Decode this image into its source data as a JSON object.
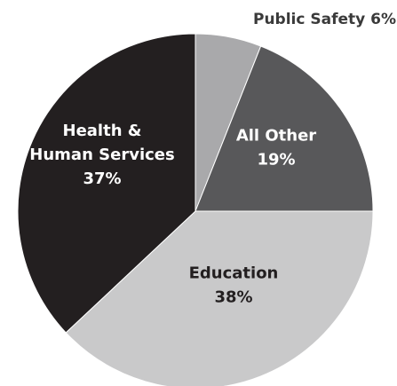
{
  "chart_data": {
    "type": "pie",
    "title": "",
    "start_angle_deg": 0,
    "direction": "clockwise",
    "slices": [
      {
        "name": "Public Safety",
        "label_lines": [
          "Public Safety 6%"
        ],
        "value": 6,
        "color": "#a9a9ab",
        "label_color": "#3a3a3a",
        "label_placement": "outside"
      },
      {
        "name": "All Other",
        "label_lines": [
          "All Other",
          "19%"
        ],
        "value": 19,
        "color": "#58585a",
        "label_color": "#ffffff",
        "label_placement": "inside"
      },
      {
        "name": "Education",
        "label_lines": [
          "Education",
          "38%"
        ],
        "value": 38,
        "color": "#c9c9ca",
        "label_color": "#231f20",
        "label_placement": "inside"
      },
      {
        "name": "Health & Human Services",
        "label_lines": [
          "Health &",
          "Human Services",
          "37%"
        ],
        "value": 37,
        "color": "#231f20",
        "label_color": "#ffffff",
        "label_placement": "inside"
      }
    ]
  }
}
